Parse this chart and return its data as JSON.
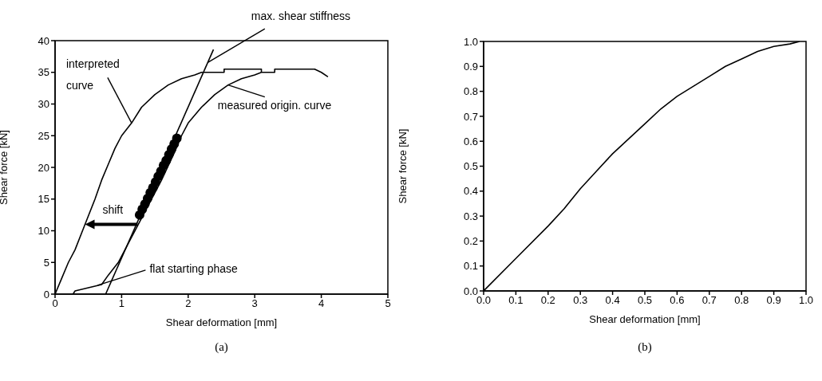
{
  "chart_data": [
    {
      "type": "line",
      "xlabel": "Shear deformation [mm]",
      "ylabel": "Shear force [kN]",
      "xlim": [
        0,
        5
      ],
      "xticks": [
        0,
        1,
        2,
        3,
        4,
        5
      ],
      "ylim": [
        0,
        40
      ],
      "yticks": [
        0,
        5,
        10,
        15,
        20,
        25,
        30,
        35,
        40
      ],
      "marker": "none",
      "line_style": "solid",
      "series": [
        {
          "color": "#000000",
          "x": [
            0,
            0.1,
            0.2,
            0.3,
            0.45,
            0.6,
            0.7,
            0.8,
            0.9,
            1.0,
            1.15,
            1.3,
            1.5,
            1.7,
            1.9,
            2.1,
            2.2,
            2.54,
            2.54,
            3.1,
            3.1
          ],
          "values": [
            0,
            2.5,
            5,
            7,
            11,
            15,
            18,
            20.5,
            23,
            25,
            27,
            29.5,
            31.5,
            33,
            34,
            34.6,
            35,
            35,
            35.5,
            35.5,
            35
          ]
        },
        {
          "color": "#000000",
          "x": [
            0.27,
            0.3,
            0.5,
            0.7,
            0.8,
            0.95,
            1.1,
            1.25,
            1.4,
            1.6,
            1.8,
            1.9,
            2.0,
            2.2,
            2.4,
            2.6,
            2.8,
            3.0,
            3.1,
            3.3,
            3.3,
            3.9,
            4.0,
            4.1
          ],
          "values": [
            0,
            0.5,
            1,
            1.5,
            3,
            5,
            8,
            11,
            14,
            18,
            22.5,
            25,
            27,
            29.5,
            31.5,
            33,
            34,
            34.6,
            35,
            35,
            35.5,
            35.5,
            35,
            34.3
          ]
        },
        {
          "color": "#000000",
          "x": [
            0.76,
            2.38
          ],
          "values": [
            0,
            38.6
          ]
        },
        {
          "type": "scatter",
          "marker": "circle",
          "color": "#000000",
          "x": [
            1.27,
            1.31,
            1.35,
            1.39,
            1.43,
            1.47,
            1.51,
            1.55,
            1.59,
            1.63,
            1.67,
            1.71,
            1.75,
            1.79,
            1.83
          ],
          "values": [
            12.5,
            13.4,
            14.2,
            15.1,
            16.0,
            16.8,
            17.7,
            18.6,
            19.4,
            20.3,
            21.1,
            22.0,
            22.9,
            23.7,
            24.6
          ]
        }
      ],
      "annotations": [
        {
          "text": "interpreted curve",
          "x": 1.15,
          "y": 27
        },
        {
          "text": "measured origin. curve",
          "x": 2.6,
          "y": 33
        },
        {
          "text": "max. shear stiffness",
          "x": 2.3,
          "y": 36.6
        },
        {
          "text": "flat starting phase",
          "x": 0.64,
          "y": 1.4
        },
        {
          "text": "shift",
          "x": 1.24,
          "y": 11
        },
        "(a)"
      ]
    },
    {
      "type": "line",
      "xlabel": "Shear deformation [mm]",
      "ylabel": "Shear force [kN]",
      "xlim": [
        0,
        1
      ],
      "xticks": [
        {
          "value": 0,
          "label": "0.0"
        },
        0.1,
        0.2,
        0.3,
        0.4,
        0.5,
        0.6,
        0.7,
        0.8,
        0.9,
        {
          "value": 1,
          "label": "1.0"
        }
      ],
      "ylim": [
        0,
        1
      ],
      "yticks": [
        {
          "value": 0,
          "label": "0.0"
        },
        0.1,
        0.2,
        0.3,
        0.4,
        0.5,
        0.6,
        0.7,
        0.8,
        0.9,
        {
          "value": 1,
          "label": "1.0"
        }
      ],
      "marker": "none",
      "line_style": "solid",
      "series": [
        {
          "color": "#000000",
          "x": [
            0,
            0.1,
            0.2,
            0.25,
            0.3,
            0.35,
            0.4,
            0.45,
            0.5,
            0.55,
            0.6,
            0.65,
            0.7,
            0.75,
            0.8,
            0.85,
            0.9,
            0.95,
            0.98
          ],
          "values": [
            0,
            0.13,
            0.26,
            0.33,
            0.41,
            0.48,
            0.55,
            0.61,
            0.67,
            0.73,
            0.78,
            0.82,
            0.86,
            0.9,
            0.93,
            0.96,
            0.98,
            0.99,
            1.0
          ]
        }
      ],
      "annotations": [
        "(b)"
      ]
    }
  ]
}
